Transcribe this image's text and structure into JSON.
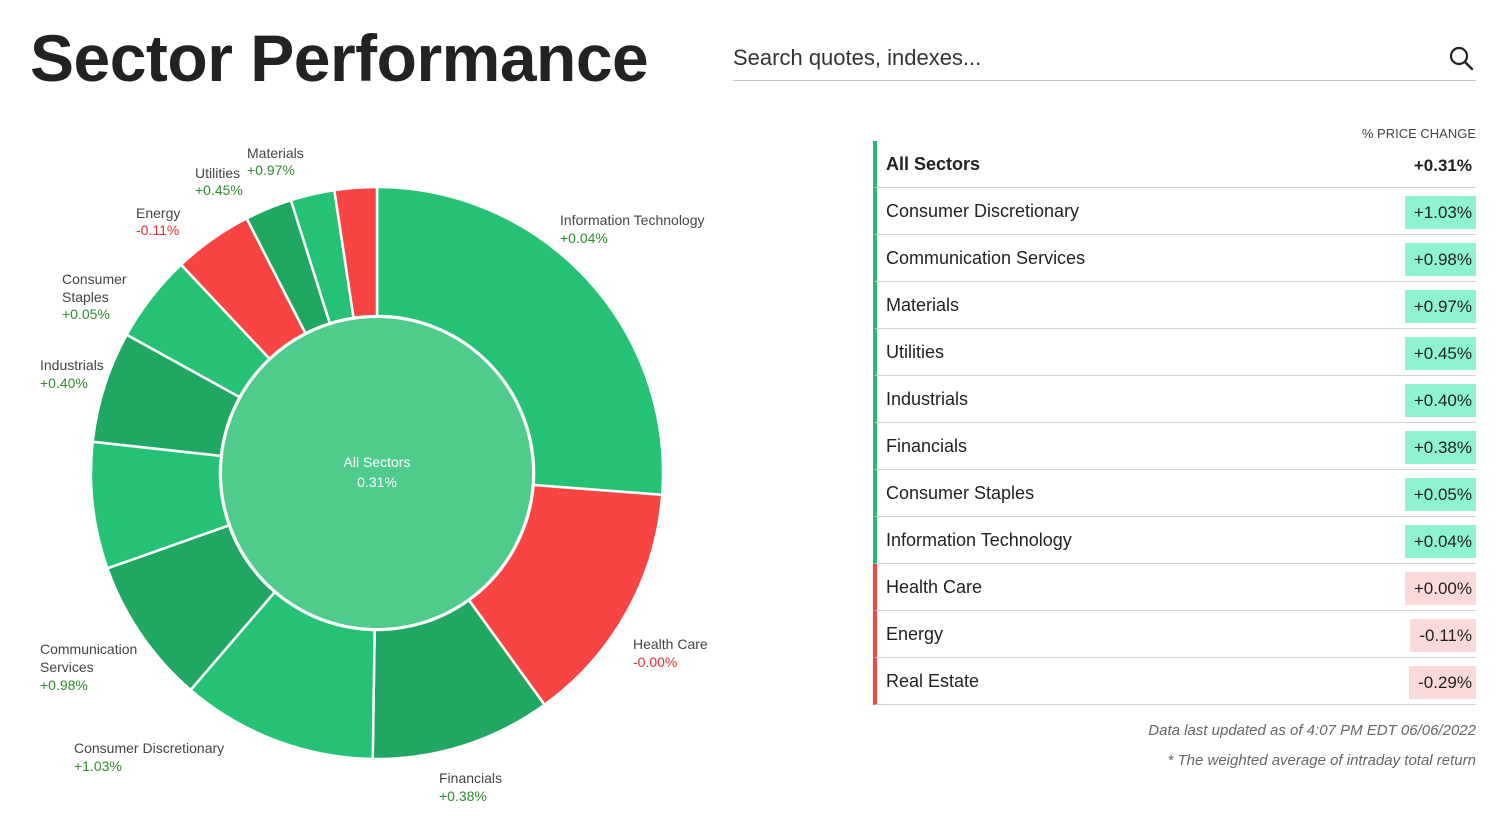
{
  "page": {
    "title": "Sector Performance",
    "search_placeholder": "Search quotes, indexes..."
  },
  "colors": {
    "positive_dark": "#25c275",
    "positive_alt": "#20a862",
    "negative": "#f94444",
    "center": "#4fcb8c",
    "value_positive_bg": "#8ff2d3",
    "value_negative_bg": "#fcd9d9"
  },
  "icons": {
    "search": "search-icon"
  },
  "chart_data": {
    "type": "pie",
    "center_label": "All Sectors",
    "center_value": "0.31%",
    "slices": [
      {
        "name": "Information Technology",
        "change": "+0.04%",
        "weight": 27.5,
        "sign": "positive"
      },
      {
        "name": "Health Care",
        "change": "-0.00%",
        "weight": 14.5,
        "sign": "negative"
      },
      {
        "name": "Financials",
        "change": "+0.38%",
        "weight": 10.7,
        "sign": "positive"
      },
      {
        "name": "Real Estate",
        "change": "",
        "weight": 0,
        "sign": "negative"
      },
      {
        "name": "Consumer Discretionary",
        "change": "+1.03%",
        "weight": 11.6,
        "sign": "positive"
      },
      {
        "name": "Communication Services",
        "change": "+0.98%",
        "weight": 8.7,
        "sign": "positive"
      },
      {
        "name": "",
        "change": "",
        "weight": 7.5,
        "sign": "positive"
      },
      {
        "name": "Industrials",
        "change": "+0.40%",
        "weight": 6.6,
        "sign": "positive"
      },
      {
        "name": "Consumer Staples",
        "change": "+0.05%",
        "weight": 5.2,
        "sign": "positive"
      },
      {
        "name": "Energy",
        "change": "-0.11%",
        "weight": 4.7,
        "sign": "negative"
      },
      {
        "name": "Utilities",
        "change": "+0.45%",
        "weight": 2.8,
        "sign": "positive"
      },
      {
        "name": "Materials",
        "change": "+0.97%",
        "weight": 2.6,
        "sign": "positive"
      },
      {
        "name": "",
        "change": "",
        "weight": 2.5,
        "sign": "negative"
      }
    ]
  },
  "table": {
    "header": "% PRICE CHANGE",
    "rows": [
      {
        "name": "All Sectors",
        "value": "+0.31%",
        "sign": "positive"
      },
      {
        "name": "Consumer Discretionary",
        "value": "+1.03%",
        "sign": "positive"
      },
      {
        "name": "Communication Services",
        "value": "+0.98%",
        "sign": "positive"
      },
      {
        "name": "Materials",
        "value": "+0.97%",
        "sign": "positive"
      },
      {
        "name": "Utilities",
        "value": "+0.45%",
        "sign": "positive"
      },
      {
        "name": "Industrials",
        "value": "+0.40%",
        "sign": "positive"
      },
      {
        "name": "Financials",
        "value": "+0.38%",
        "sign": "positive"
      },
      {
        "name": "Consumer Staples",
        "value": "+0.05%",
        "sign": "positive"
      },
      {
        "name": "Information Technology",
        "value": "+0.04%",
        "sign": "positive"
      },
      {
        "name": "Health Care",
        "value": "+0.00%",
        "sign": "negative"
      },
      {
        "name": "Energy",
        "value": "-0.11%",
        "sign": "negative"
      },
      {
        "name": "Real Estate",
        "value": "-0.29%",
        "sign": "negative"
      }
    ]
  },
  "footer": {
    "updated": "Data last updated as of 4:07 PM EDT 06/06/2022",
    "note": "* The weighted average of intraday total return"
  }
}
